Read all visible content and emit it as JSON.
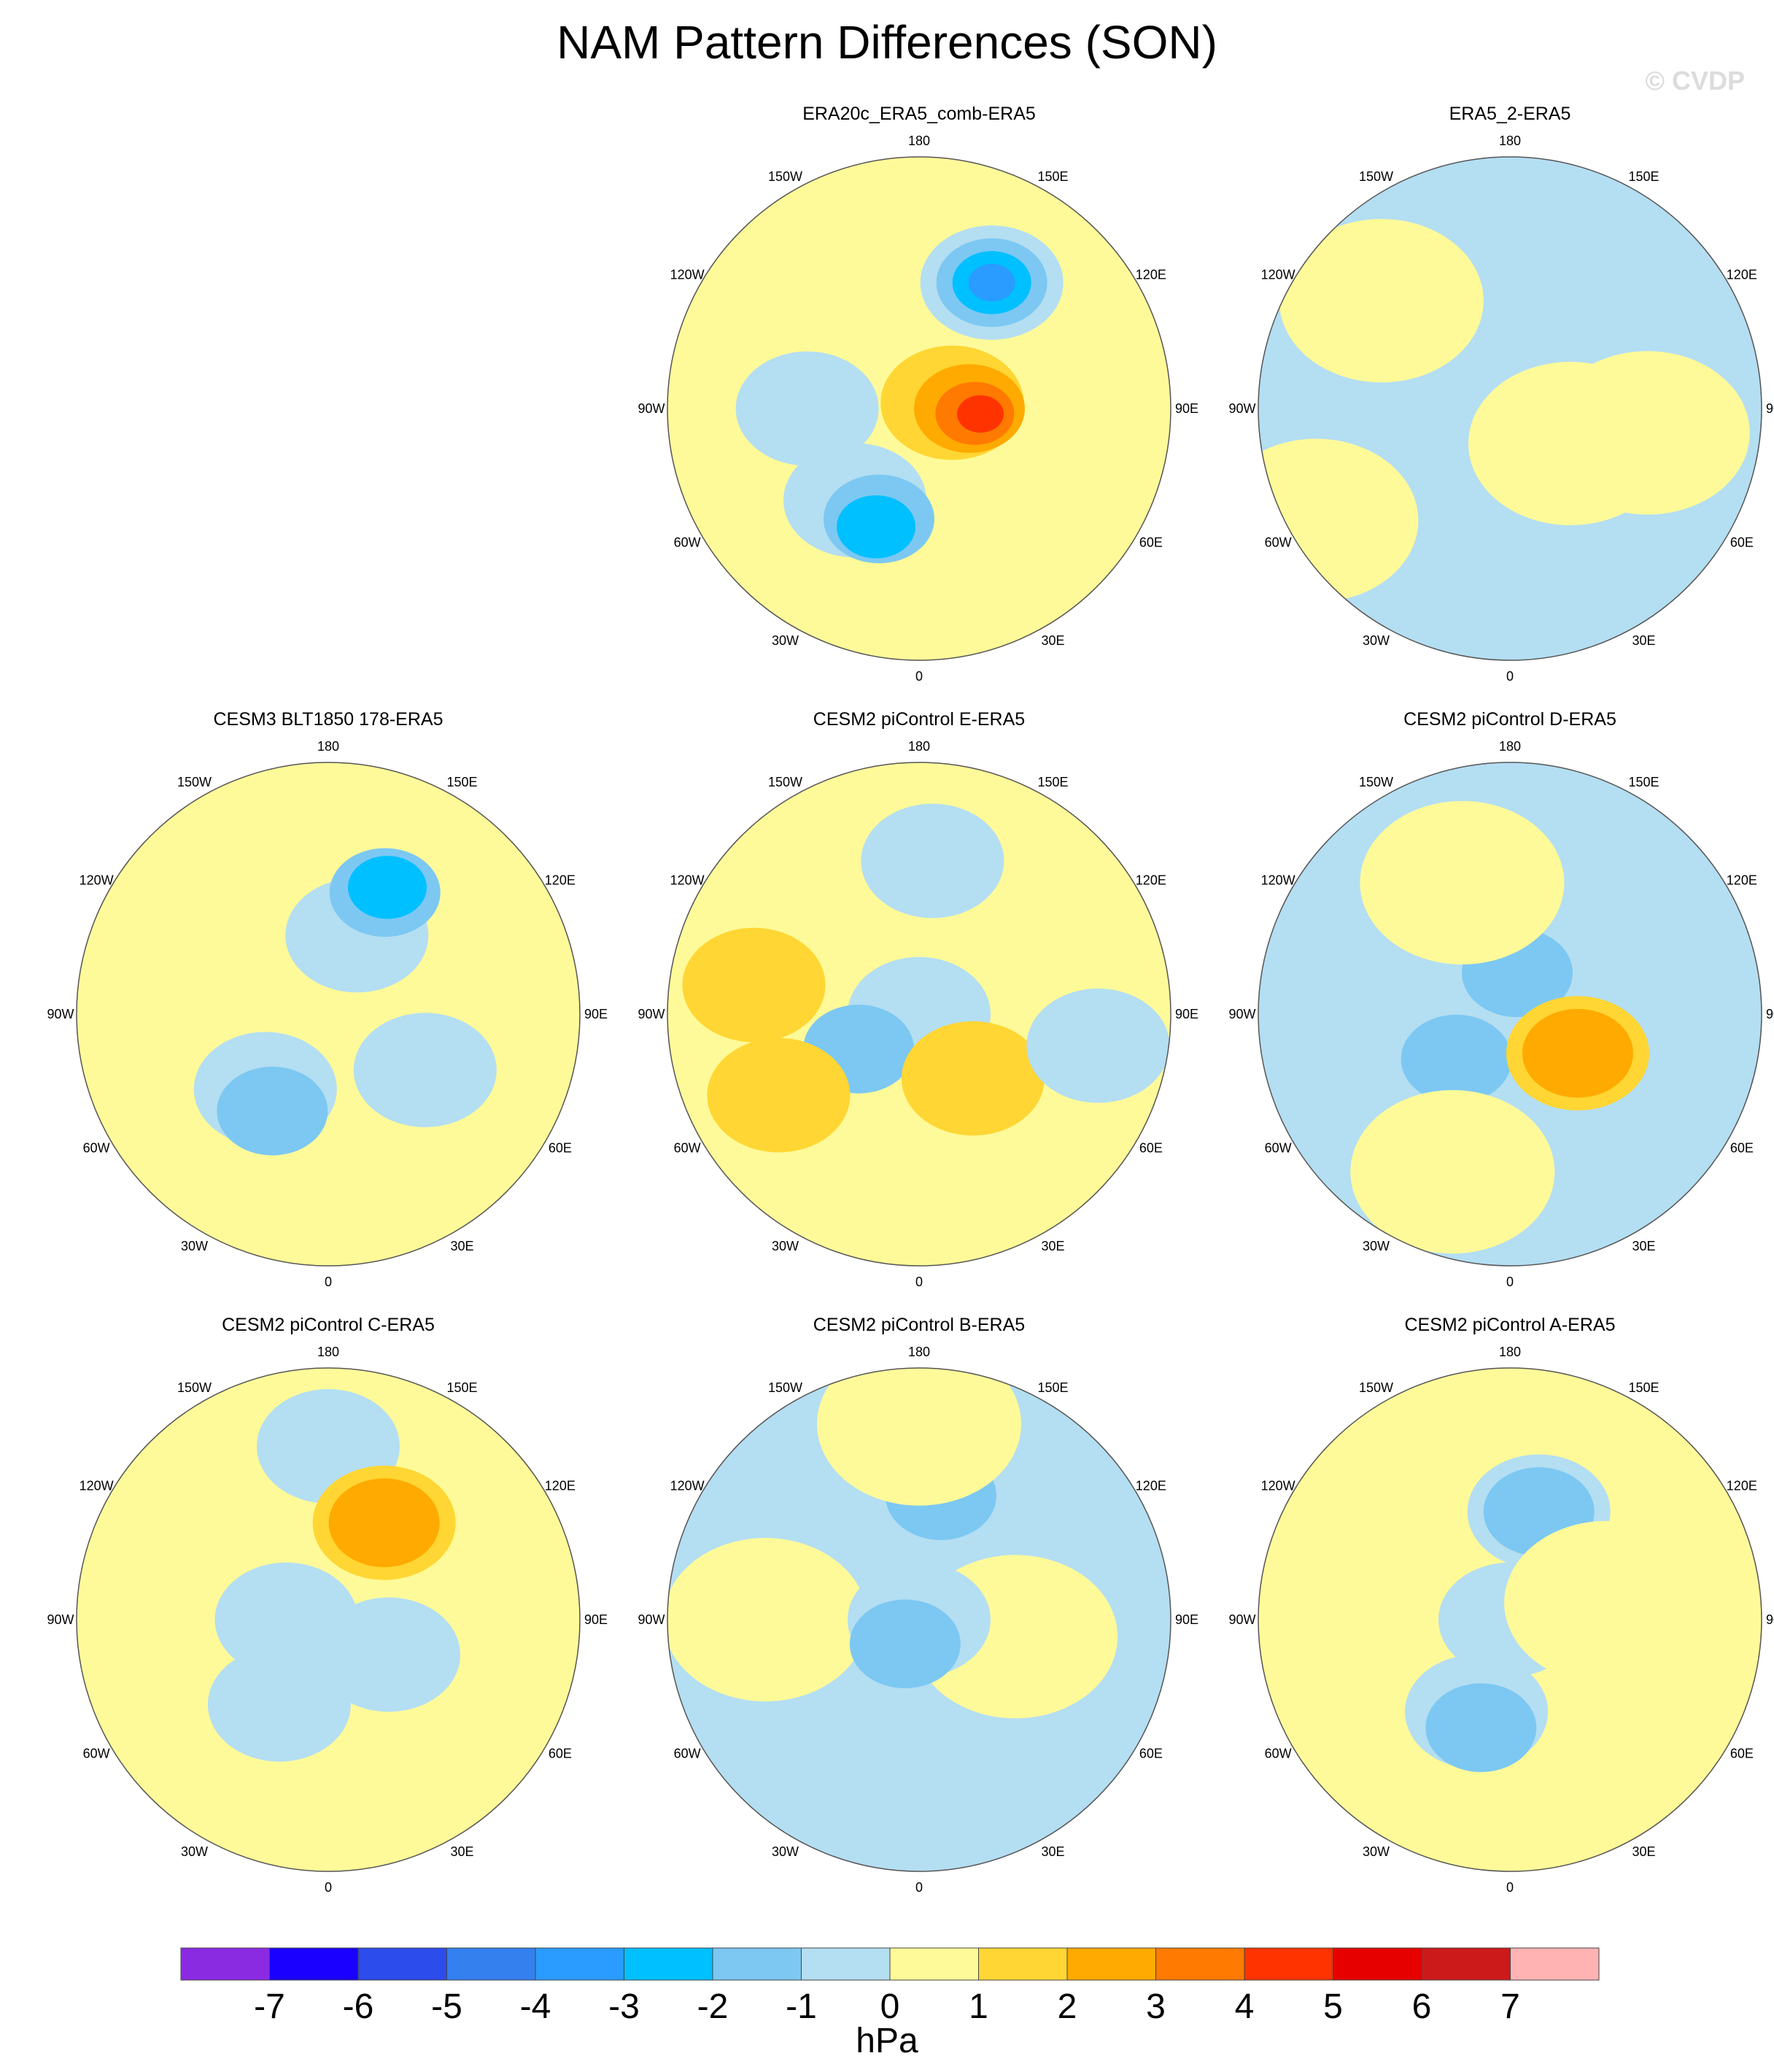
{
  "title": "NAM Pattern Differences (SON)",
  "watermark": "© CVDP",
  "longitude_labels": [
    "180",
    "150E",
    "120E",
    "90E",
    "60E",
    "30E",
    "0",
    "30W",
    "60W",
    "90W",
    "120W",
    "150W"
  ],
  "panels": [
    {
      "title": "ERA20c_ERA5_comb-ERA5",
      "row": 0,
      "col": 1,
      "background_level": 0,
      "anomalies": [
        {
          "lon": 180,
          "radius_deg": 40,
          "value": 0
        },
        {
          "lon": 150,
          "radius_deg": 52,
          "value": -1
        },
        {
          "lon": 150,
          "radius_deg": 52,
          "value": -2
        },
        {
          "lon": 150,
          "radius_deg": 52,
          "value": -3
        },
        {
          "lon": 150,
          "radius_deg": 52,
          "value": -4
        },
        {
          "lon": 100,
          "radius_deg": 12,
          "value": 1
        },
        {
          "lon": 90,
          "radius_deg": 18,
          "value": 2
        },
        {
          "lon": 85,
          "radius_deg": 20,
          "value": 3
        },
        {
          "lon": 85,
          "radius_deg": 22,
          "value": 4
        },
        {
          "lon": 325,
          "radius_deg": 40,
          "value": -1
        },
        {
          "lon": 340,
          "radius_deg": 42,
          "value": -2
        },
        {
          "lon": 340,
          "radius_deg": 45,
          "value": -3
        },
        {
          "lon": 270,
          "radius_deg": 40,
          "value": -1
        }
      ]
    },
    {
      "title": "ERA5_2-ERA5",
      "row": 0,
      "col": 2,
      "background_level": -1,
      "anomalies": [
        {
          "lon": 60,
          "radius_deg": 25,
          "value": 0
        },
        {
          "lon": 230,
          "radius_deg": 60,
          "value": 0
        },
        {
          "lon": 80,
          "radius_deg": 50,
          "value": 0
        },
        {
          "lon": 300,
          "radius_deg": 80,
          "value": 0
        }
      ]
    },
    {
      "title": "CESM3 BLT1850 178-ERA5",
      "row": 1,
      "col": 0,
      "background_level": 0,
      "anomalies": [
        {
          "lon": 160,
          "radius_deg": 30,
          "value": -1
        },
        {
          "lon": 155,
          "radius_deg": 48,
          "value": -2
        },
        {
          "lon": 155,
          "radius_deg": 50,
          "value": -3
        },
        {
          "lon": 320,
          "radius_deg": 35,
          "value": -1
        },
        {
          "lon": 330,
          "radius_deg": 40,
          "value": -2
        },
        {
          "lon": 60,
          "radius_deg": 40,
          "value": -1
        }
      ]
    },
    {
      "title": "CESM2 piControl E-ERA5",
      "row": 1,
      "col": 1,
      "background_level": 0,
      "anomalies": [
        {
          "lon": 0,
          "radius_deg": 0,
          "value": -1
        },
        {
          "lon": 300,
          "radius_deg": 25,
          "value": -2
        },
        {
          "lon": 40,
          "radius_deg": 30,
          "value": 1
        },
        {
          "lon": 300,
          "radius_deg": 58,
          "value": 1
        },
        {
          "lon": 260,
          "radius_deg": 60,
          "value": 1
        },
        {
          "lon": 80,
          "radius_deg": 65,
          "value": -1
        },
        {
          "lon": 175,
          "radius_deg": 55,
          "value": -1
        }
      ]
    },
    {
      "title": "CESM2 piControl D-ERA5",
      "row": 1,
      "col": 2,
      "background_level": -1,
      "anomalies": [
        {
          "lon": 0,
          "radius_deg": 0,
          "value": -1
        },
        {
          "lon": 170,
          "radius_deg": 15,
          "value": -2
        },
        {
          "lon": 310,
          "radius_deg": 25,
          "value": -2
        },
        {
          "lon": 60,
          "radius_deg": 28,
          "value": 1
        },
        {
          "lon": 60,
          "radius_deg": 28,
          "value": 2
        },
        {
          "lon": 340,
          "radius_deg": 60,
          "value": 0
        },
        {
          "lon": 200,
          "radius_deg": 50,
          "value": 0
        }
      ]
    },
    {
      "title": "CESM2 piControl C-ERA5",
      "row": 2,
      "col": 0,
      "background_level": 0,
      "anomalies": [
        {
          "lon": 180,
          "radius_deg": 62,
          "value": -1
        },
        {
          "lon": 150,
          "radius_deg": 40,
          "value": 1
        },
        {
          "lon": 150,
          "radius_deg": 40,
          "value": 2
        },
        {
          "lon": 60,
          "radius_deg": 25,
          "value": -1
        },
        {
          "lon": 330,
          "radius_deg": 35,
          "value": -1
        },
        {
          "lon": 270,
          "radius_deg": 15,
          "value": -1
        }
      ]
    },
    {
      "title": "CESM2 piControl B-ERA5",
      "row": 2,
      "col": 1,
      "background_level": -1,
      "anomalies": [
        {
          "lon": 170,
          "radius_deg": 45,
          "value": -2
        },
        {
          "lon": 180,
          "radius_deg": 70,
          "value": 0
        },
        {
          "lon": 80,
          "radius_deg": 35,
          "value": 0
        },
        {
          "lon": 270,
          "radius_deg": 55,
          "value": 0
        },
        {
          "lon": 0,
          "radius_deg": 0,
          "value": -1
        },
        {
          "lon": 330,
          "radius_deg": 10,
          "value": -2
        }
      ]
    },
    {
      "title": "CESM2 piControl A-ERA5",
      "row": 2,
      "col": 2,
      "background_level": 0,
      "anomalies": [
        {
          "lon": 0,
          "radius_deg": 0,
          "value": -1
        },
        {
          "lon": 165,
          "radius_deg": 40,
          "value": -1
        },
        {
          "lon": 165,
          "radius_deg": 40,
          "value": -2
        },
        {
          "lon": 340,
          "radius_deg": 35,
          "value": -1
        },
        {
          "lon": 345,
          "radius_deg": 40,
          "value": -2
        },
        {
          "lon": 100,
          "radius_deg": 35,
          "value": 0
        }
      ]
    }
  ],
  "colorbar": {
    "units": "hPa",
    "tick_labels": [
      "-7",
      "-6",
      "-5",
      "-4",
      "-3",
      "-2",
      "-1",
      "0",
      "1",
      "2",
      "3",
      "4",
      "5",
      "6",
      "7"
    ],
    "colors": [
      "#8a2be2",
      "#1a00ff",
      "#2c4ceb",
      "#3380ee",
      "#2a9bff",
      "#00c0ff",
      "#7cc8f2",
      "#b4def2",
      "#fffa99",
      "#ffd633",
      "#ffaa00",
      "#ff7a00",
      "#ff3300",
      "#e60000",
      "#cc1a1a",
      "#ffb3b3"
    ]
  }
}
